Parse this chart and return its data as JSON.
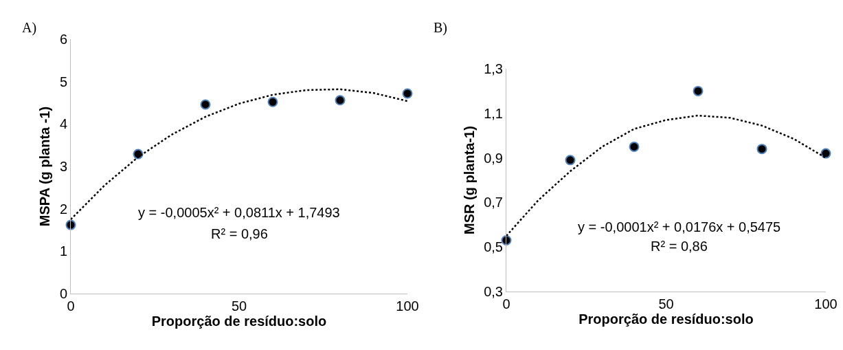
{
  "chart_data": [
    {
      "type": "scatter",
      "title": "A)",
      "xlabel": "Proporção de resíduo:solo",
      "ylabel": "MSPA (g planta -1)",
      "xlim": [
        0,
        100
      ],
      "xticks": [
        0,
        50,
        100
      ],
      "ylim": [
        0,
        6
      ],
      "yticks": [
        0,
        1,
        2,
        3,
        4,
        5,
        6
      ],
      "marker": "circle",
      "series": [
        {
          "x": [
            0,
            20,
            40,
            60,
            80,
            100
          ],
          "values": [
            1.62,
            3.29,
            4.46,
            4.52,
            4.56,
            4.72
          ],
          "color": "#000000"
        },
        {
          "type": "line",
          "line_style": "dotted",
          "marker": "none",
          "x": [
            0,
            10,
            20,
            30,
            40,
            50,
            60,
            70,
            80,
            90,
            100
          ],
          "values": [
            1.75,
            2.55,
            3.22,
            3.75,
            4.17,
            4.48,
            4.69,
            4.8,
            4.82,
            4.73,
            4.54
          ],
          "color": "#000000"
        }
      ],
      "annotations": [
        "y = -0,0005x² + 0,0811x + 1,7493",
        "R² = 0,96"
      ]
    },
    {
      "type": "scatter",
      "title": "B)",
      "xlabel": "Proporção de resíduo:solo",
      "ylabel": "MSR (g planta-1)",
      "xlim": [
        0,
        100
      ],
      "xticks": [
        0,
        50,
        100
      ],
      "ylim": [
        0.3,
        1.3
      ],
      "yticks": [
        {
          "value": 0.3,
          "label": "0,3"
        },
        {
          "value": 0.5,
          "label": "0,5"
        },
        {
          "value": 0.7,
          "label": "0,7"
        },
        {
          "value": 0.9,
          "label": "0,9"
        },
        {
          "value": 1.1,
          "label": "1,1"
        },
        {
          "value": 1.3,
          "label": "1,3"
        }
      ],
      "marker": "circle",
      "series": [
        {
          "x": [
            0,
            20,
            40,
            60,
            80,
            100
          ],
          "values": [
            0.53,
            0.89,
            0.95,
            1.2,
            0.94,
            0.92
          ],
          "color": "#000000"
        },
        {
          "type": "line",
          "line_style": "dotted",
          "marker": "none",
          "x": [
            0,
            10,
            20,
            30,
            40,
            50,
            60,
            70,
            80,
            90,
            100
          ],
          "values": [
            0.55,
            0.71,
            0.84,
            0.95,
            1.03,
            1.07,
            1.09,
            1.08,
            1.045,
            0.985,
            0.9
          ],
          "color": "#000000"
        }
      ],
      "annotations": [
        "y = -0,0001x² + 0,0176x + 0,5475",
        "R² = 0,86"
      ]
    }
  ]
}
